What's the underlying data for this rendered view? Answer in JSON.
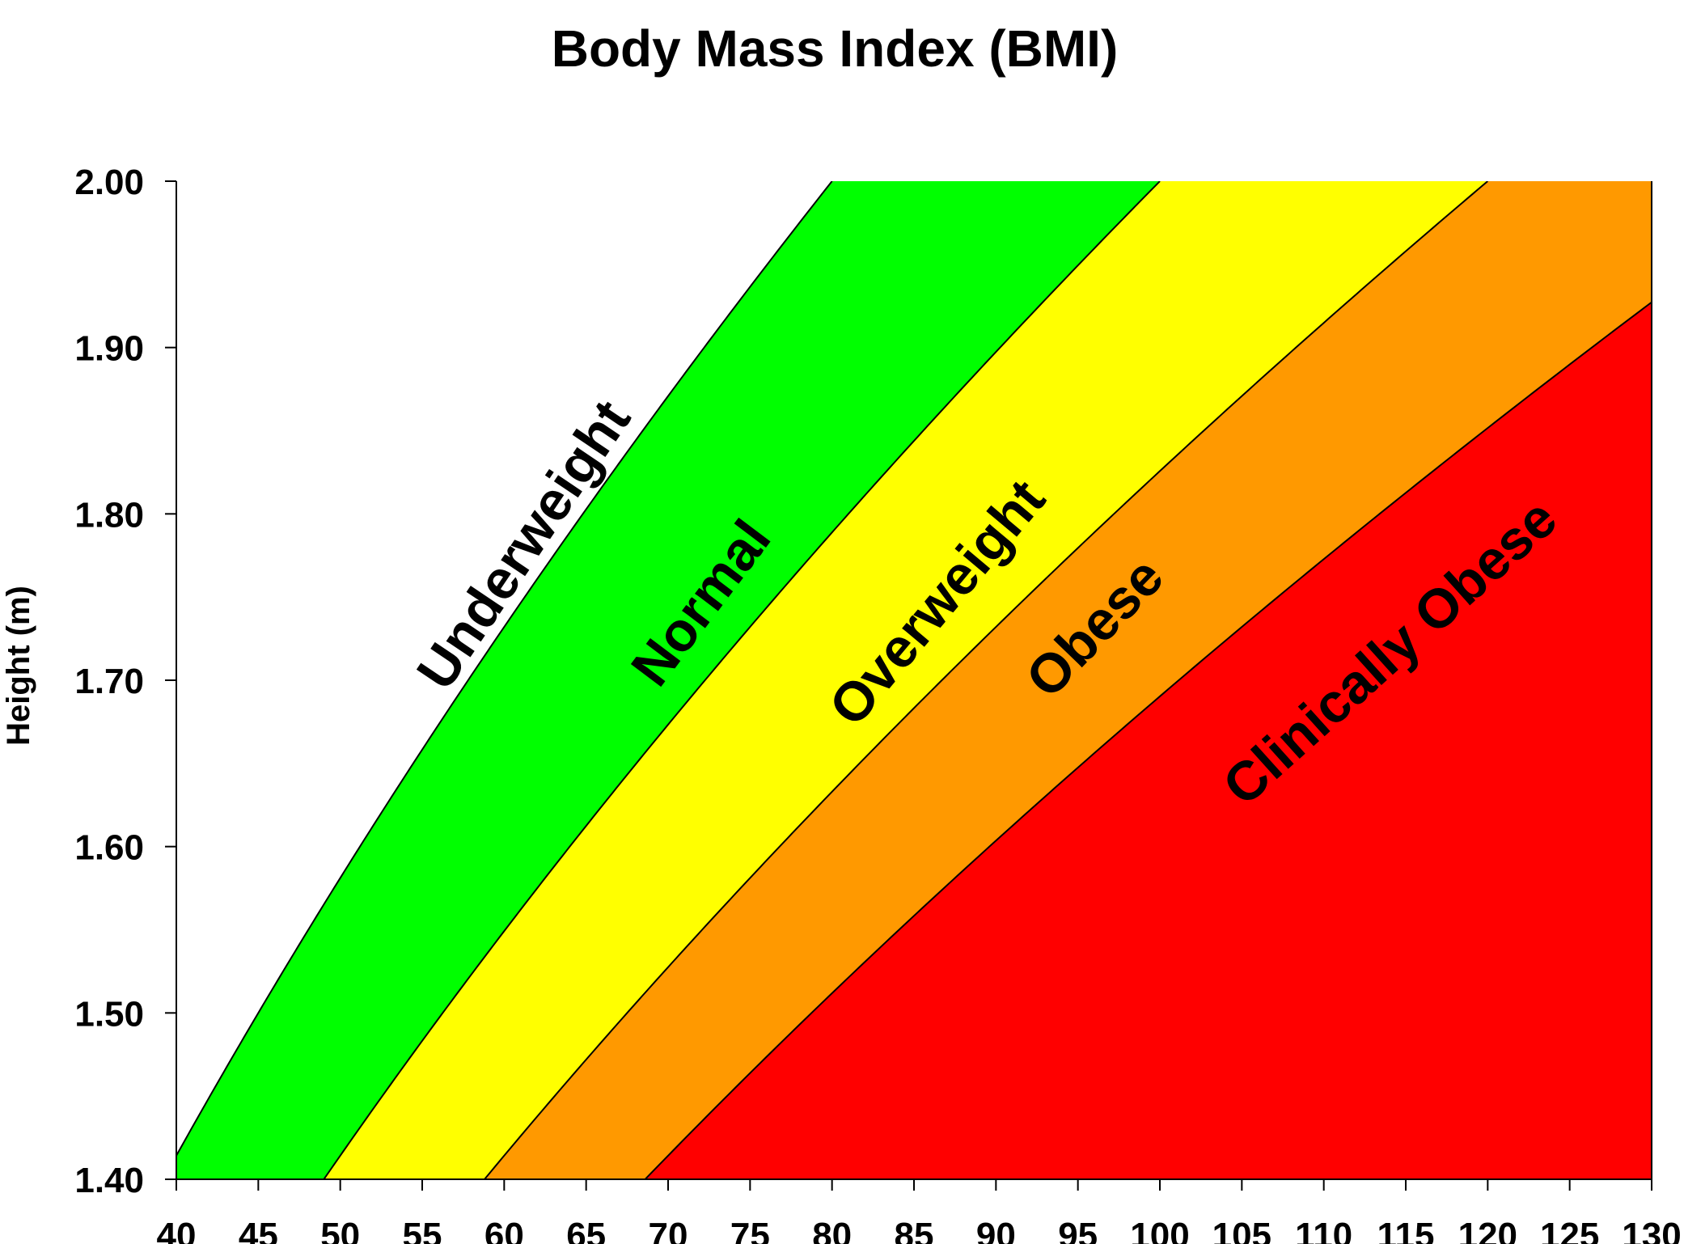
{
  "chart_data": {
    "type": "area",
    "title": "Body Mass Index (BMI)",
    "xlabel": "",
    "ylabel": "Height (m)",
    "xlim": [
      40,
      130
    ],
    "ylim": [
      1.4,
      2.0
    ],
    "x_ticks": [
      "40",
      "45",
      "50",
      "55",
      "60",
      "65",
      "70",
      "75",
      "80",
      "85",
      "90",
      "95",
      "100",
      "105",
      "110",
      "115",
      "120",
      "125",
      "130"
    ],
    "y_ticks": [
      "1.40",
      "1.50",
      "1.60",
      "1.70",
      "1.80",
      "1.90",
      "2.00"
    ],
    "grid": false,
    "boundaries_bmi": [
      20,
      25,
      30,
      35
    ],
    "zones": [
      {
        "name": "Underweight",
        "color": "#ffffff",
        "bmi_min": 0,
        "bmi_max": 20,
        "label_weight": 61.4,
        "label_height": 1.78,
        "label_angle": -56
      },
      {
        "name": "Normal",
        "color": "#00ff00",
        "bmi_min": 20,
        "bmi_max": 25,
        "label_weight": 72.2,
        "label_height": 1.745,
        "label_angle": -53
      },
      {
        "name": "Overweight",
        "color": "#ffff00",
        "bmi_min": 25,
        "bmi_max": 30,
        "label_weight": 86.6,
        "label_height": 1.745,
        "label_angle": -50
      },
      {
        "name": "Obese",
        "color": "#ff9900",
        "bmi_min": 30,
        "bmi_max": 35,
        "label_weight": 96.2,
        "label_height": 1.73,
        "label_angle": -46
      },
      {
        "name": "Clinically Obese",
        "color": "#ff0000",
        "bmi_min": 35,
        "bmi_max": 999,
        "label_weight": 114.2,
        "label_height": 1.715,
        "label_angle": -42
      }
    ]
  }
}
